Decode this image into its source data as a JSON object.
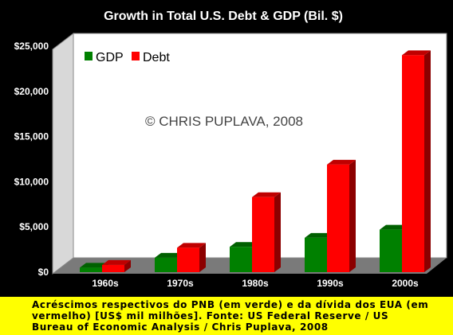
{
  "chart_data": {
    "type": "bar",
    "title": "Growth in Total U.S. Debt & GDP (Bil. $)",
    "categories": [
      "1960s",
      "1970s",
      "1980s",
      "1990s",
      "2000s"
    ],
    "series": [
      {
        "name": "GDP",
        "values": [
          500,
          1600,
          2800,
          3800,
          4700
        ],
        "color": "#008000"
      },
      {
        "name": "Debt",
        "values": [
          800,
          2700,
          8300,
          11900,
          24000
        ],
        "color": "#ff0000"
      }
    ],
    "ylim": [
      0,
      25000
    ],
    "yticks": [
      "$0",
      "$5,000",
      "$10,000",
      "$15,000",
      "$20,000",
      "$25,000"
    ],
    "ytick_values": [
      0,
      5000,
      10000,
      15000,
      20000,
      25000
    ],
    "legend": "top-left",
    "grid": false,
    "watermark": "© CHRIS PUPLAVA, 2008"
  },
  "caption": "Acréscimos respectivos do PNB (em verde) e da dívida dos EUA (em vermelho) [US$ mil milhões]. Fonte: US Federal Reserve / US Bureau of Economic Analysis / Chris Puplava, 2008",
  "colors": {
    "background": "#000000",
    "plot_wall": "#ffffff",
    "caption_bg": "#ffff00"
  }
}
